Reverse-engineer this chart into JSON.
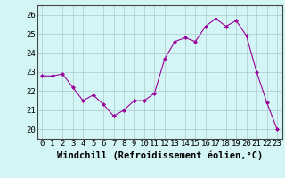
{
  "x": [
    0,
    1,
    2,
    3,
    4,
    5,
    6,
    7,
    8,
    9,
    10,
    11,
    12,
    13,
    14,
    15,
    16,
    17,
    18,
    19,
    20,
    21,
    22,
    23
  ],
  "y": [
    22.8,
    22.8,
    22.9,
    22.2,
    21.5,
    21.8,
    21.3,
    20.7,
    21.0,
    21.5,
    21.5,
    21.9,
    23.7,
    24.6,
    24.8,
    24.6,
    25.4,
    25.8,
    25.4,
    25.7,
    24.9,
    23.0,
    21.4,
    20.0
  ],
  "line_color": "#990099",
  "marker_color": "#990099",
  "bg_color": "#d4f5f5",
  "grid_color": "#b0c8c8",
  "xlabel": "Windchill (Refroidissement éolien,°C)",
  "ylim": [
    19.5,
    26.5
  ],
  "xlim": [
    -0.5,
    23.5
  ],
  "yticks": [
    20,
    21,
    22,
    23,
    24,
    25,
    26
  ],
  "xticks": [
    0,
    1,
    2,
    3,
    4,
    5,
    6,
    7,
    8,
    9,
    10,
    11,
    12,
    13,
    14,
    15,
    16,
    17,
    18,
    19,
    20,
    21,
    22,
    23
  ],
  "tick_fontsize": 6.5,
  "xlabel_fontsize": 7.5
}
